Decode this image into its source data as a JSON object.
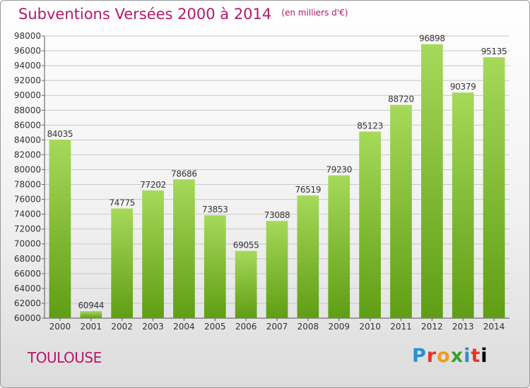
{
  "header": {
    "title": "Subventions Versées 2000 à 2014",
    "unit": "(en milliers d'€)"
  },
  "footer": {
    "commune": "TOULOUSE",
    "logo": [
      "P",
      "r",
      "o",
      "x",
      "i",
      "t",
      "i"
    ]
  },
  "colors": {
    "accent": "#b5176b",
    "bar_light": "#a6d95a",
    "bar_dark": "#5f9e14",
    "grid": "#c8c8c8"
  },
  "chart_data": {
    "type": "bar",
    "categories": [
      "2000",
      "2001",
      "2002",
      "2003",
      "2004",
      "2005",
      "2006",
      "2007",
      "2008",
      "2009",
      "2010",
      "2011",
      "2012",
      "2013",
      "2014"
    ],
    "values": [
      84035,
      60944,
      74775,
      77202,
      78686,
      73853,
      69055,
      73088,
      76519,
      79230,
      85123,
      88720,
      96898,
      90379,
      95135
    ],
    "title": "Subventions Versées 2000 à 2014",
    "ylim": [
      60000,
      98000
    ],
    "yticks": [
      60000,
      62000,
      64000,
      66000,
      68000,
      70000,
      72000,
      74000,
      76000,
      78000,
      80000,
      82000,
      84000,
      86000,
      88000,
      90000,
      92000,
      94000,
      96000,
      98000
    ],
    "grid": true
  }
}
